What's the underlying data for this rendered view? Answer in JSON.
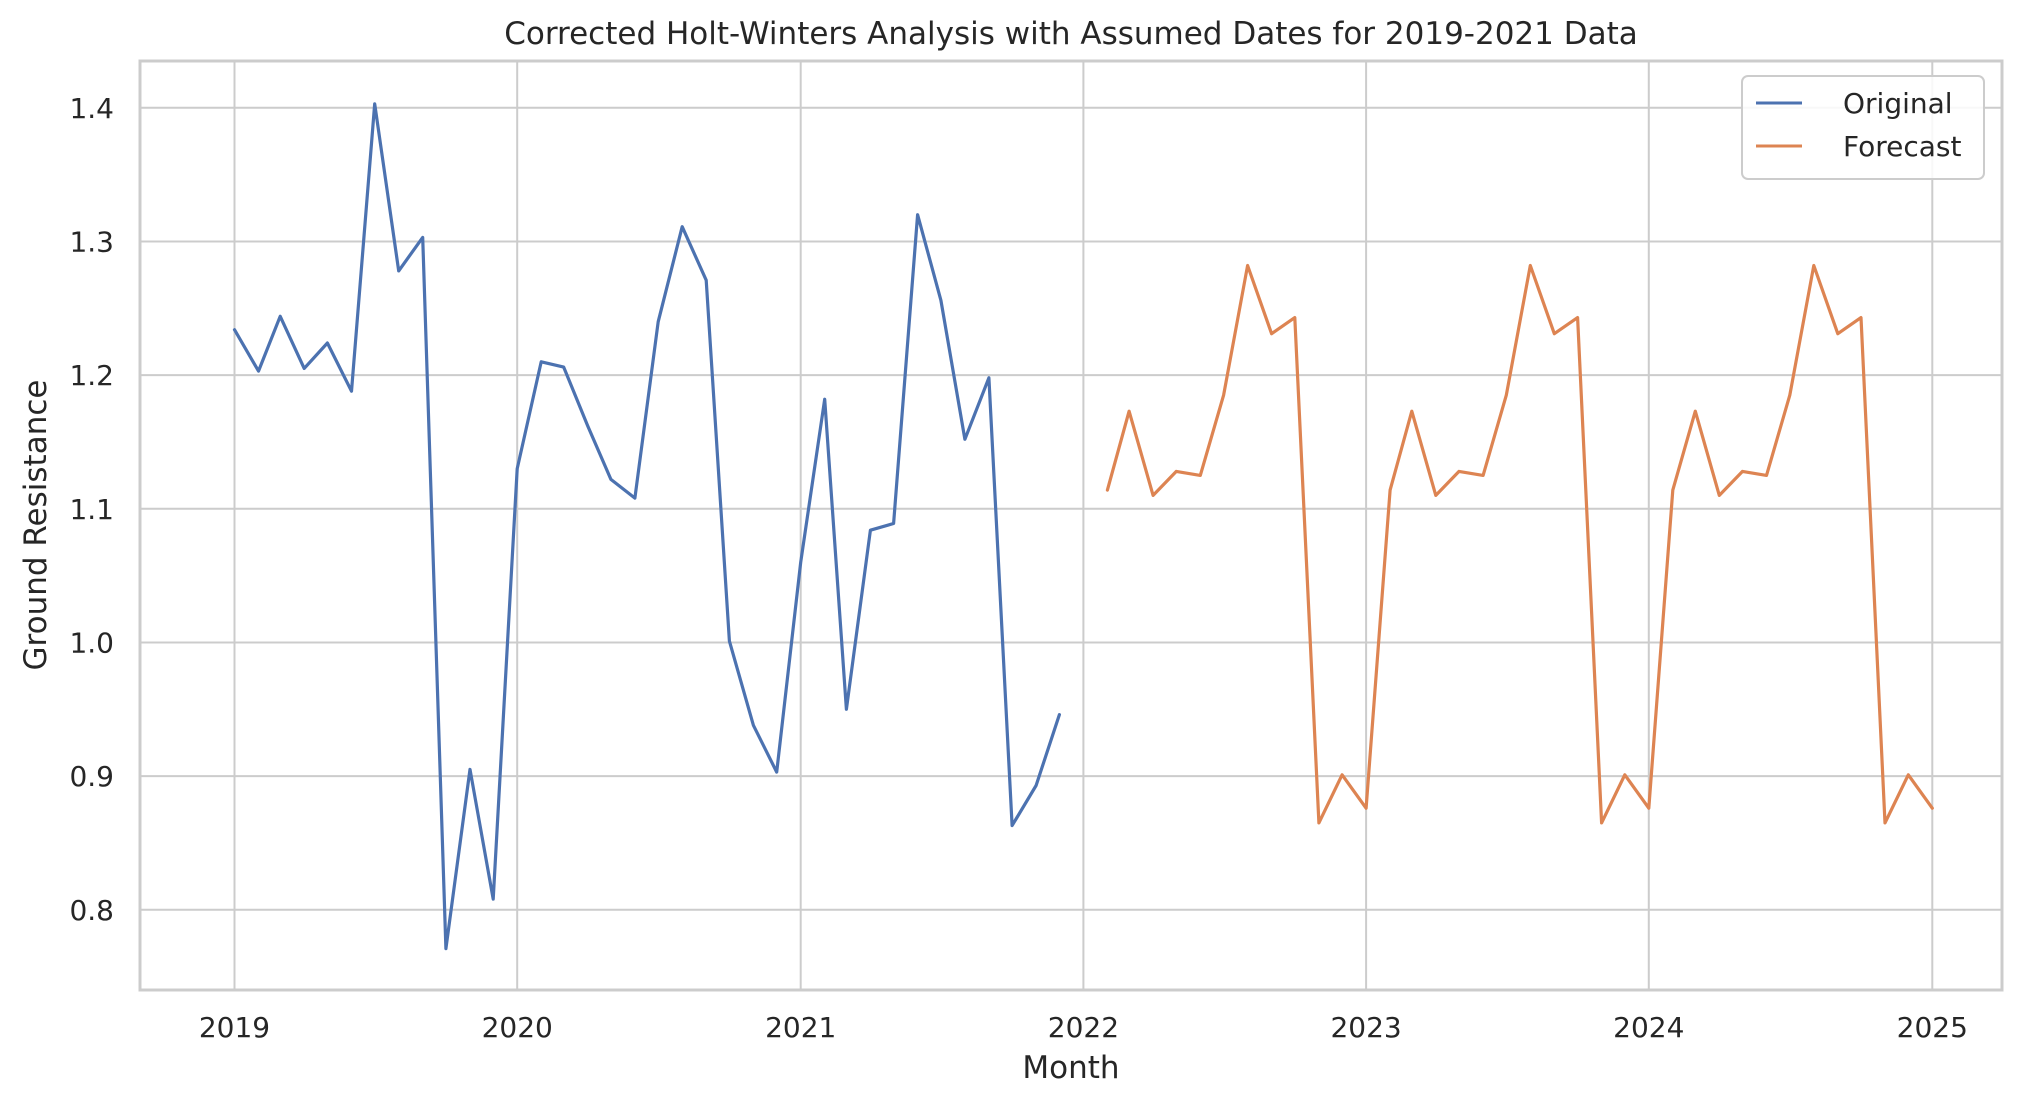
{
  "chart_data": {
    "type": "line",
    "title": "Corrected Holt-Winters Analysis with Assumed Dates for 2019-2021 Data",
    "xlabel": "Month",
    "ylabel": "Ground Resistance",
    "x_axis": "date",
    "xlim": [
      "2018-09-01",
      "2025-04-01"
    ],
    "ylim": [
      0.74,
      1.435
    ],
    "x_ticks": [
      {
        "date": "2019-01-01",
        "label": "2019"
      },
      {
        "date": "2020-01-01",
        "label": "2020"
      },
      {
        "date": "2021-01-01",
        "label": "2021"
      },
      {
        "date": "2022-01-01",
        "label": "2022"
      },
      {
        "date": "2023-01-01",
        "label": "2023"
      },
      {
        "date": "2024-01-01",
        "label": "2024"
      },
      {
        "date": "2025-01-01",
        "label": "2025"
      }
    ],
    "y_ticks": [
      {
        "value": 0.8,
        "label": "0.8"
      },
      {
        "value": 0.9,
        "label": "0.9"
      },
      {
        "value": 1.0,
        "label": "1.0"
      },
      {
        "value": 1.1,
        "label": "1.1"
      },
      {
        "value": 1.2,
        "label": "1.2"
      },
      {
        "value": 1.3,
        "label": "1.3"
      },
      {
        "value": 1.4,
        "label": "1.4"
      }
    ],
    "grid": true,
    "legend_position": "top-right",
    "series": [
      {
        "name": "Original",
        "color": "#4c72b0",
        "x": [
          "2019-01-01",
          "2019-02-01",
          "2019-03-01",
          "2019-04-01",
          "2019-05-01",
          "2019-06-01",
          "2019-07-01",
          "2019-08-01",
          "2019-09-01",
          "2019-10-01",
          "2019-11-01",
          "2019-12-01",
          "2020-01-01",
          "2020-02-01",
          "2020-03-01",
          "2020-04-01",
          "2020-05-01",
          "2020-06-01",
          "2020-07-01",
          "2020-08-01",
          "2020-09-01",
          "2020-10-01",
          "2020-11-01",
          "2020-12-01",
          "2021-01-01",
          "2021-02-01",
          "2021-03-01",
          "2021-04-01",
          "2021-05-01",
          "2021-06-01",
          "2021-07-01",
          "2021-08-01",
          "2021-09-01",
          "2021-10-01",
          "2021-11-01",
          "2021-12-01"
        ],
        "y": [
          1.234,
          1.203,
          1.244,
          1.205,
          1.224,
          1.188,
          1.403,
          1.278,
          1.303,
          0.771,
          0.905,
          0.808,
          1.13,
          1.21,
          1.206,
          1.162,
          1.122,
          1.108,
          1.24,
          1.311,
          1.271,
          1.001,
          0.938,
          0.903,
          1.06,
          1.182,
          0.95,
          1.084,
          1.089,
          1.32,
          1.256,
          1.152,
          1.198,
          0.863,
          0.893,
          0.946
        ]
      },
      {
        "name": "Forecast",
        "color": "#dd8452",
        "x": [
          "2022-02-01",
          "2022-03-01",
          "2022-04-01",
          "2022-05-01",
          "2022-06-01",
          "2022-07-01",
          "2022-08-01",
          "2022-09-01",
          "2022-10-01",
          "2022-11-01",
          "2022-12-01",
          "2023-01-01",
          "2023-02-01",
          "2023-03-01",
          "2023-04-01",
          "2023-05-01",
          "2023-06-01",
          "2023-07-01",
          "2023-08-01",
          "2023-09-01",
          "2023-10-01",
          "2023-11-01",
          "2023-12-01",
          "2024-01-01",
          "2024-02-01",
          "2024-03-01",
          "2024-04-01",
          "2024-05-01",
          "2024-06-01",
          "2024-07-01",
          "2024-08-01",
          "2024-09-01",
          "2024-10-01",
          "2024-11-01",
          "2024-12-01",
          "2025-01-01"
        ],
        "y": [
          1.114,
          1.173,
          1.11,
          1.128,
          1.125,
          1.185,
          1.282,
          1.231,
          1.243,
          0.865,
          0.901,
          0.876,
          1.114,
          1.173,
          1.11,
          1.128,
          1.125,
          1.185,
          1.282,
          1.231,
          1.243,
          0.865,
          0.901,
          0.876,
          1.114,
          1.173,
          1.11,
          1.128,
          1.125,
          1.185,
          1.282,
          1.231,
          1.243,
          0.865,
          0.901,
          0.876
        ]
      }
    ]
  }
}
